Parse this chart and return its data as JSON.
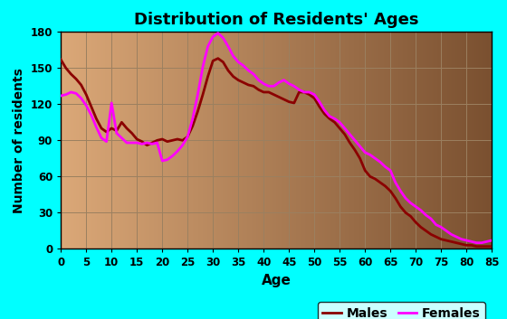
{
  "title": "Distribution of Residents' Ages",
  "xlabel": "Age",
  "ylabel": "Number of residents",
  "xlim": [
    0,
    85
  ],
  "ylim": [
    0,
    180
  ],
  "xticks": [
    0,
    5,
    10,
    15,
    20,
    25,
    30,
    35,
    40,
    45,
    50,
    55,
    60,
    65,
    70,
    75,
    80,
    85
  ],
  "yticks": [
    0,
    30,
    60,
    90,
    120,
    150,
    180
  ],
  "background_outer": "#00ffff",
  "grad_left": "#dba878",
  "grad_right": "#7a5030",
  "male_color": "#8b0000",
  "female_color": "#ff00ff",
  "grid_color": "#9b8060",
  "males_ages": [
    0,
    1,
    2,
    3,
    4,
    5,
    6,
    7,
    8,
    9,
    10,
    11,
    12,
    13,
    14,
    15,
    16,
    17,
    18,
    19,
    20,
    21,
    22,
    23,
    24,
    25,
    26,
    27,
    28,
    29,
    30,
    31,
    32,
    33,
    34,
    35,
    36,
    37,
    38,
    39,
    40,
    41,
    42,
    43,
    44,
    45,
    46,
    47,
    48,
    49,
    50,
    51,
    52,
    53,
    54,
    55,
    56,
    57,
    58,
    59,
    60,
    61,
    62,
    63,
    64,
    65,
    66,
    67,
    68,
    69,
    70,
    71,
    72,
    73,
    74,
    75,
    76,
    77,
    78,
    79,
    80,
    81,
    82,
    83,
    84,
    85
  ],
  "males_values": [
    157,
    150,
    145,
    141,
    136,
    128,
    118,
    108,
    100,
    97,
    100,
    98,
    105,
    100,
    96,
    91,
    89,
    86,
    88,
    90,
    91,
    89,
    90,
    91,
    90,
    93,
    102,
    114,
    128,
    143,
    156,
    158,
    155,
    148,
    143,
    140,
    138,
    136,
    135,
    132,
    130,
    130,
    128,
    126,
    124,
    122,
    121,
    130,
    130,
    128,
    125,
    118,
    112,
    108,
    105,
    100,
    95,
    88,
    82,
    75,
    65,
    60,
    58,
    55,
    52,
    48,
    42,
    35,
    30,
    27,
    22,
    18,
    15,
    12,
    10,
    8,
    7,
    6,
    5,
    4,
    3,
    3,
    2,
    2,
    2,
    2
  ],
  "females_ages": [
    0,
    1,
    2,
    3,
    4,
    5,
    6,
    7,
    8,
    9,
    10,
    11,
    12,
    13,
    14,
    15,
    16,
    17,
    18,
    19,
    20,
    21,
    22,
    23,
    24,
    25,
    26,
    27,
    28,
    29,
    30,
    31,
    32,
    33,
    34,
    35,
    36,
    37,
    38,
    39,
    40,
    41,
    42,
    43,
    44,
    45,
    46,
    47,
    48,
    49,
    50,
    51,
    52,
    53,
    54,
    55,
    56,
    57,
    58,
    59,
    60,
    61,
    62,
    63,
    64,
    65,
    66,
    67,
    68,
    69,
    70,
    71,
    72,
    73,
    74,
    75,
    76,
    77,
    78,
    79,
    80,
    81,
    82,
    83,
    84,
    85
  ],
  "females_values": [
    127,
    128,
    130,
    129,
    125,
    119,
    111,
    101,
    92,
    89,
    121,
    96,
    92,
    88,
    88,
    88,
    87,
    88,
    87,
    88,
    73,
    74,
    77,
    81,
    86,
    93,
    108,
    128,
    151,
    168,
    176,
    179,
    175,
    168,
    160,
    155,
    152,
    148,
    145,
    140,
    137,
    135,
    135,
    138,
    140,
    137,
    135,
    132,
    130,
    130,
    128,
    122,
    115,
    110,
    108,
    105,
    100,
    95,
    90,
    85,
    80,
    78,
    75,
    72,
    68,
    65,
    55,
    48,
    42,
    38,
    35,
    32,
    28,
    25,
    20,
    18,
    15,
    12,
    10,
    8,
    7,
    6,
    5,
    5,
    6,
    7
  ]
}
